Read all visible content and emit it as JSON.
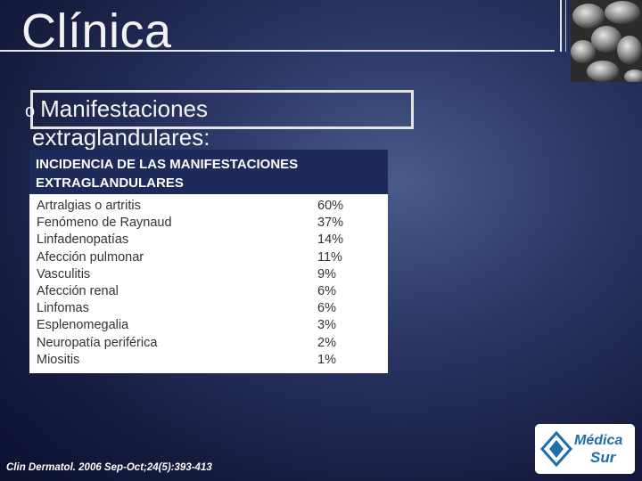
{
  "slide": {
    "title": "Clínica",
    "bullet_mark": "o",
    "bullet_line1": "Manifestaciones",
    "bullet_line2": "extraglandulares:"
  },
  "table": {
    "header": "INCIDENCIA DE LAS MANIFESTACIONES EXTRAGLANDULARES",
    "rows": [
      {
        "name": "Artralgias o artritis",
        "value": "60%"
      },
      {
        "name": "Fenómeno de Raynaud",
        "value": "37%"
      },
      {
        "name": "Linfadenopatías",
        "value": "14%"
      },
      {
        "name": "Afección pulmonar",
        "value": "11%"
      },
      {
        "name": "Vasculitis",
        "value": "9%"
      },
      {
        "name": "Afección renal",
        "value": "6%"
      },
      {
        "name": "Linfomas",
        "value": "6%"
      },
      {
        "name": "Esplenomegalia",
        "value": "3%"
      },
      {
        "name": "Neuropatía periférica",
        "value": "2%"
      },
      {
        "name": "Miositis",
        "value": "1%"
      }
    ]
  },
  "footer": {
    "citation": "Clin Dermatol. 2006 Sep-Oct;24(5):393-413",
    "logo_line1": "Médica",
    "logo_line2": "Sur"
  },
  "colors": {
    "background": "#1e2a5a",
    "table_header": "#1e2a5a",
    "logo_blue": "#1d6fa8"
  }
}
